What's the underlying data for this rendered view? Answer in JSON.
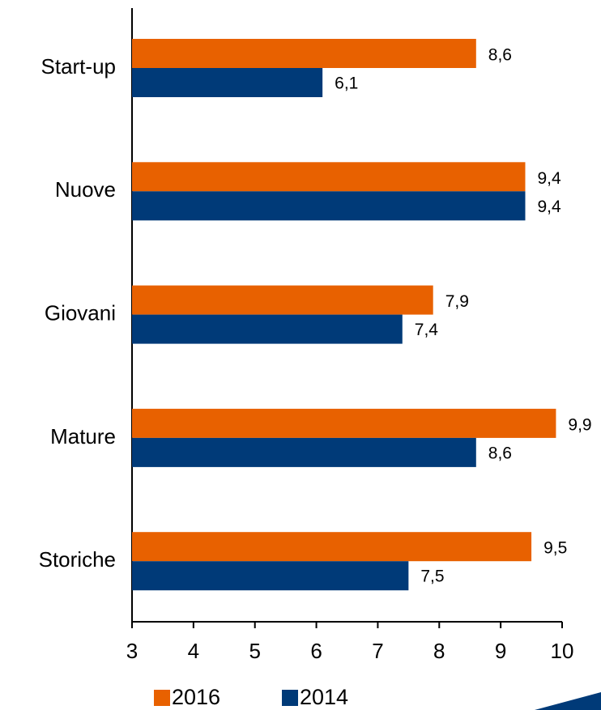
{
  "chart_data": {
    "type": "hbar",
    "categories": [
      "Start-up",
      "Nuove",
      "Giovani",
      "Mature",
      "Storiche"
    ],
    "series": [
      {
        "name": "2016",
        "color": "#e86100",
        "values": [
          8.6,
          9.4,
          7.9,
          9.9,
          9.5
        ],
        "value_labels": [
          "8,6",
          "9,4",
          "7,9",
          "9,9",
          "9,5"
        ]
      },
      {
        "name": "2014",
        "color": "#003a78",
        "values": [
          6.1,
          9.4,
          7.4,
          8.6,
          7.5
        ],
        "value_labels": [
          "6,1",
          "9,4",
          "7,4",
          "8,6",
          "7,5"
        ]
      }
    ],
    "xlim": [
      3,
      10
    ],
    "xticks": [
      3,
      4,
      5,
      6,
      7,
      8,
      9,
      10
    ],
    "legend": "bottom"
  }
}
